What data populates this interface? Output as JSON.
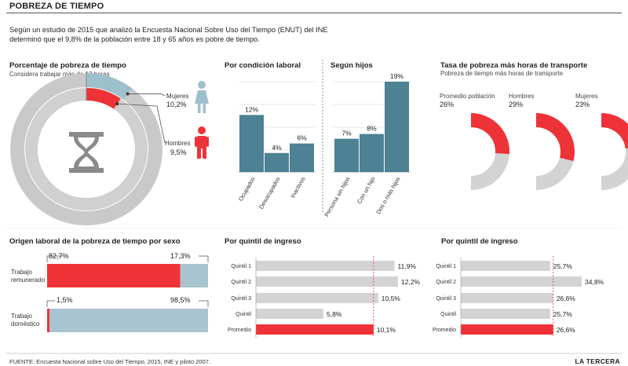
{
  "title": "POBREZA DE TIEMPO",
  "intro": "Según un estudio de 2015  que analizó la Encuesta Nacional Sobre Uso del Tiempo (ENUT) del INE determinó que el 9,8% de la población entre 18 y 65 años es pobre de tiempo.",
  "donut": {
    "title": "Porcentaje de pobreza de tiempo",
    "subtitle": "Considera trabajar más de 12 horas",
    "mujeres_label": "Mujeres",
    "mujeres_value": "10,2%",
    "hombres_label": "Hombres",
    "hombres_value": "9,5%"
  },
  "condicion": {
    "title": "Por condición laboral"
  },
  "hijos": {
    "title": "Según hijos"
  },
  "transporte": {
    "title": "Tasa de pobreza más horas de transporte",
    "subtitle": "Pobreza de tiempo más horas de transporte",
    "items": [
      {
        "label": "Promedio población",
        "value": "26%"
      },
      {
        "label": "Hombres",
        "value": "29%"
      },
      {
        "label": "Mujeres",
        "value": "23%"
      }
    ]
  },
  "origen": {
    "title": "Origen laboral de la pobreza de tiempo por sexo",
    "rows": [
      {
        "label1": "Trabajo",
        "label2": "remunerado",
        "red_label": "82,7%",
        "blue_label": "17,3%"
      },
      {
        "label1": "Trabajo",
        "label2": "doméstico",
        "red_label": "1,5%",
        "blue_label": "98,5%"
      }
    ]
  },
  "quintil_left": {
    "title": "Por quintil de ingreso"
  },
  "quintil_right": {
    "title": "Por quintil de ingreso"
  },
  "footer": "FUENTE: Encuesta Nacional sobre Uso del Tiempo, 2015, INE y piloto 2007.",
  "brand": "LA TERCERA",
  "colors": {
    "red": "#ee3338",
    "teal": "#4d8194",
    "grey": "#d3d3d3",
    "lightblue": "#a7c4d0",
    "female": "#9ec0cc"
  },
  "chart_data": [
    {
      "type": "pie",
      "name": "donut",
      "title": "Porcentaje de pobreza de tiempo",
      "subtitle": "Considera trabajar más de 12 horas",
      "slices": [
        {
          "label": "Mujeres",
          "value": 10.2,
          "text": "10,2%"
        },
        {
          "label": "Hombres",
          "value": 9.5,
          "text": "9,5%"
        }
      ]
    },
    {
      "type": "bar",
      "name": "condicion",
      "title": "Por condición laboral",
      "categories": [
        "Ocupados",
        "Desocupados",
        "Inactivos"
      ],
      "values": [
        12,
        4,
        6
      ],
      "labels": [
        "12%",
        "4%",
        "6%"
      ]
    },
    {
      "type": "bar",
      "name": "hijos",
      "title": "Según hijos",
      "categories": [
        "Persona sin hijos",
        "Con un hijo",
        "Dos o más hijos"
      ],
      "values": [
        7,
        8,
        19
      ],
      "labels": [
        "7%",
        "8%",
        "19%"
      ]
    },
    {
      "type": "pie",
      "name": "transporte",
      "title": "Tasa de pobreza más horas de transporte",
      "categories": [
        "Promedio población",
        "Hombres",
        "Mujeres"
      ],
      "values": [
        26,
        29,
        23
      ]
    },
    {
      "type": "bar",
      "name": "origen",
      "title": "Origen laboral de la pobreza de tiempo por sexo",
      "categories": [
        "Trabajo remunerado",
        "Trabajo doméstico"
      ],
      "values_red": [
        82.7,
        1.5
      ],
      "values_blue": [
        17.3,
        98.5
      ],
      "labels_red": [
        "82,7%",
        "1,5%"
      ],
      "labels_blue": [
        "17,3%",
        "98,5%"
      ]
    },
    {
      "type": "bar",
      "name": "quintil_left",
      "title": "Por quintil de ingreso",
      "categories": [
        "Quintil 1",
        "Quintil 2",
        "Quintil 3",
        "Quintil",
        "Promedio"
      ],
      "values": [
        11.9,
        12.2,
        10.5,
        5.8,
        10.1
      ],
      "labels": [
        "11,9%",
        "12,2%",
        "10,5%",
        "5,8%",
        "10,1%"
      ],
      "xlim": [
        0,
        12.2
      ],
      "reference": 10.1
    },
    {
      "type": "bar",
      "name": "quintil_right",
      "title": "Por quintil de ingreso",
      "categories": [
        "Quintil 1",
        "Quintil 2",
        "Quintil 3",
        "Quintil",
        "Promedio"
      ],
      "values": [
        25.7,
        34.8,
        26.6,
        25.7,
        26.6
      ],
      "labels": [
        "25,7%",
        "34,8%",
        "26,6%",
        "25,7%",
        "26,6%"
      ],
      "xlim": [
        0,
        34.8
      ],
      "reference": 26.6
    }
  ]
}
